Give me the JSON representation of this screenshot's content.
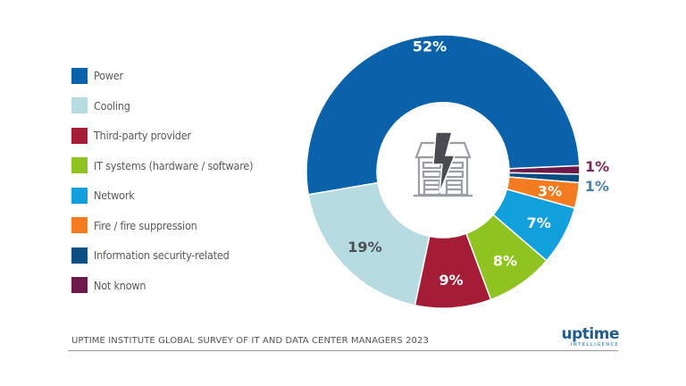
{
  "chart_data": {
    "type": "pie",
    "variant": "donut",
    "title": "",
    "categories": [
      "Power",
      "Cooling",
      "Third-party provider",
      "IT systems (hardware / software)",
      "Network",
      "Fire / fire suppression",
      "Information security-related",
      "Not known"
    ],
    "values": [
      52,
      19,
      9,
      8,
      7,
      3,
      1,
      1
    ],
    "unit": "%",
    "colors": [
      "#0a62aa",
      "#b6dbe1",
      "#a51c36",
      "#8fc31f",
      "#12a0dc",
      "#f47b20",
      "#0b4f82",
      "#6b1a4a"
    ],
    "data_labels": [
      "52%",
      "19%",
      "9%",
      "8%",
      "7%",
      "3%",
      "1%",
      "1%"
    ],
    "label_colors": [
      "#ffffff",
      "#4a4f55",
      "#ffffff",
      "#ffffff",
      "#ffffff",
      "#ffffff",
      "#4e7fa6",
      "#7a2a5a"
    ],
    "legend_position": "left",
    "center_icon": "data-center-power-outage-icon"
  },
  "legend": [
    {
      "label": "Power",
      "color": "#0a62aa"
    },
    {
      "label": "Cooling",
      "color": "#b6dbe1"
    },
    {
      "label": "Third-party provider",
      "color": "#a51c36"
    },
    {
      "label": "IT systems (hardware / software)",
      "color": "#8fc31f"
    },
    {
      "label": "Network",
      "color": "#12a0dc"
    },
    {
      "label": "Fire / fire suppression",
      "color": "#f47b20"
    },
    {
      "label": "Information security-related",
      "color": "#0b4f82"
    },
    {
      "label": "Not known",
      "color": "#6b1a4a"
    }
  ],
  "footer": {
    "source": "UPTIME INSTITUTE GLOBAL SURVEY OF IT AND DATA CENTER MANAGERS 2023",
    "logo_main": "uptime",
    "logo_sub": "INTELLIGENCE"
  }
}
